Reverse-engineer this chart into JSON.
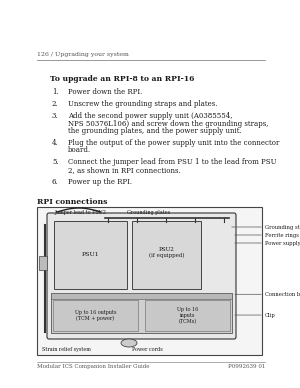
{
  "bg_color": "#ffffff",
  "text_color": "#1a1a1a",
  "gray_color": "#555555",
  "light_gray": "#aaaaaa",
  "header_text": "126 / Upgrading your system",
  "section_title": "To upgrade an RPI-8 to an RPI-16",
  "steps": [
    {
      "num": "1.",
      "lines": [
        "Power down the RPI."
      ]
    },
    {
      "num": "2.",
      "lines": [
        "Unscrew the grounding straps and plates."
      ]
    },
    {
      "num": "3.",
      "lines": [
        "Add the second power supply unit (A0385554,",
        "NPS 50376L106) and screw down the grounding straps,",
        "the grounding plates, and the power supply unit."
      ]
    },
    {
      "num": "4.",
      "lines": [
        "Plug the output of the power supply unit into the connector",
        "board."
      ]
    },
    {
      "num": "5.",
      "lines": [
        "Connect the jumper lead from PSU 1 to the lead from PSU",
        "2, as shown in RPI connections."
      ]
    },
    {
      "num": "6.",
      "lines": [
        "Power up the RPI."
      ]
    }
  ],
  "rpi_label": "RPI connections",
  "footer_left": "Modular ICS Companion Installer Guide",
  "footer_right": "P0992639 01"
}
